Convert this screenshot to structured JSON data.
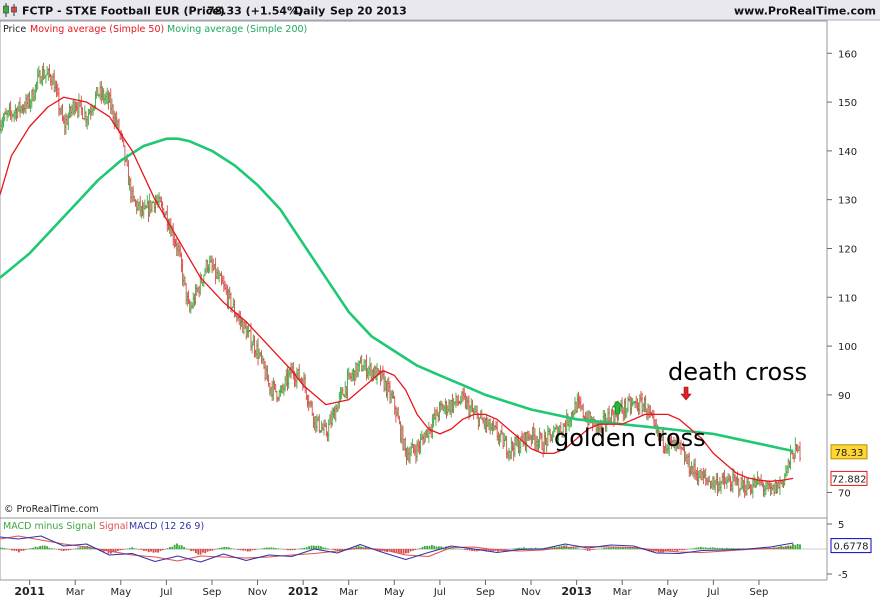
{
  "header": {
    "title": "FCTP - STXE Football EUR (Price)",
    "price": "78.33 (+1.54%)",
    "interval": "Daily",
    "date": "Sep 20 2013",
    "site": "www.ProRealTime.com"
  },
  "legend": {
    "price": "Price",
    "ma50": "Moving average (Simple 50)",
    "ma200": "Moving average (Simple 200)"
  },
  "watermark": "© ProRealTime.com",
  "annotations": {
    "golden": "golden cross",
    "death": "death cross"
  },
  "macd_legend": {
    "hist": "MACD minus Signal",
    "signal": "Signal",
    "macd": "MACD (12 26 9)"
  },
  "colors": {
    "ma50": "#e8161b",
    "ma200": "#1fc873",
    "up": "#3fa83f",
    "down": "#d84848",
    "macd": "#3333aa",
    "signal": "#e05050",
    "price_badge": "#ffd633",
    "ma50_badge": "#e8161b",
    "macd_badge": "#0000cc",
    "golden_arrow": "#22bb33",
    "death_arrow": "#dd2222"
  },
  "chart_data": [
    {
      "type": "line",
      "ylim": [
        66,
        166
      ],
      "yticks": [
        "160",
        "150",
        "140",
        "130",
        "120",
        "110",
        "100",
        "90",
        "70"
      ],
      "x_labels": [
        "2011",
        "Mar",
        "May",
        "Jul",
        "Sep",
        "Nov",
        "2012",
        "Mar",
        "May",
        "Jul",
        "Sep",
        "Nov",
        "2013",
        "Mar",
        "May",
        "Jul",
        "Sep"
      ],
      "x_label_months": [
        0,
        2,
        4,
        6,
        8,
        10,
        12,
        14,
        16,
        18,
        20,
        22,
        24,
        26,
        28,
        30,
        32
      ],
      "month_range": [
        -1.3,
        33.8
      ],
      "series": [
        {
          "name": "Price",
          "x": [
            -1.3,
            -0.7,
            0,
            0.5,
            1,
            1.5,
            2,
            2.5,
            3,
            3.5,
            4,
            4.5,
            5,
            5.5,
            6,
            6.5,
            7,
            7.5,
            7.8,
            8,
            8.5,
            9,
            9.5,
            10,
            10.5,
            11,
            11.5,
            12,
            12.5,
            13,
            13.5,
            14,
            14.5,
            15,
            15.5,
            16,
            16.5,
            17,
            17.5,
            18,
            18.5,
            19,
            19.5,
            20,
            20.5,
            21,
            21.5,
            22,
            22.5,
            23,
            23.5,
            24,
            24.5,
            25,
            25.5,
            26,
            26.5,
            27,
            27.5,
            28,
            28.5,
            29,
            29.5,
            30,
            30.5,
            31,
            31.5,
            32,
            32.5,
            33,
            33.5
          ],
          "y": [
            146,
            148,
            150,
            156,
            155,
            145,
            150,
            147,
            152,
            150,
            143,
            130,
            127,
            130,
            127,
            120,
            107,
            113,
            117,
            116,
            112,
            107,
            103,
            99,
            92,
            90,
            95,
            93,
            85,
            82,
            88,
            93,
            96,
            95,
            93,
            88,
            78,
            79,
            83,
            87,
            88,
            89,
            86,
            84,
            82,
            79,
            80,
            82,
            80,
            82,
            84,
            88,
            85,
            83,
            86,
            87,
            88,
            88,
            82,
            80,
            79,
            75,
            73,
            72,
            72,
            72,
            71,
            72,
            70,
            72,
            78.33
          ]
        },
        {
          "name": "Moving average (Simple 50)",
          "x": [
            -1.3,
            -0.8,
            0,
            0.8,
            1.5,
            2.5,
            3.5,
            4.5,
            5.5,
            6.5,
            7.5,
            8.5,
            9.5,
            10.5,
            11.5,
            12,
            13,
            14,
            15,
            15.5,
            16,
            16.5,
            17,
            17.5,
            18,
            18.5,
            19,
            19.5,
            20,
            20.5,
            21,
            21.5,
            22,
            22.5,
            23,
            23.5,
            24,
            24.5,
            25,
            25.5,
            26,
            26.5,
            27,
            27.5,
            28,
            28.5,
            29,
            29.5,
            30,
            30.5,
            31,
            31.5,
            32,
            32.5,
            33,
            33.5
          ],
          "y": [
            131,
            139,
            145,
            149,
            151,
            150,
            147,
            140,
            130,
            122,
            114,
            109,
            105,
            100,
            95,
            92,
            88,
            89,
            93,
            95,
            94,
            91,
            86,
            83,
            82,
            83,
            85,
            86,
            86,
            85,
            83,
            81,
            79,
            78,
            78,
            79,
            81,
            83,
            84,
            84,
            84,
            85,
            86,
            86,
            86,
            85,
            83,
            81,
            78,
            76,
            74,
            73,
            72.5,
            72.3,
            72.5,
            72.88
          ]
        },
        {
          "name": "Moving average (Simple 200)",
          "x": [
            -1.3,
            0,
            1,
            2,
            3,
            4,
            5,
            6,
            6.5,
            7,
            8,
            9,
            10,
            11,
            12,
            13,
            14,
            15,
            16,
            17,
            18,
            19,
            20,
            21,
            22,
            23,
            24,
            25,
            26,
            27,
            28,
            29,
            30,
            31,
            32,
            33,
            33.5
          ],
          "y": [
            114,
            119,
            124,
            129,
            134,
            138,
            141,
            142.5,
            142.5,
            142,
            140,
            137,
            133,
            128,
            121,
            114,
            107,
            102,
            99,
            96,
            94,
            92,
            90,
            88.5,
            87,
            86,
            85,
            84.5,
            84,
            83.5,
            83,
            82.5,
            82,
            81,
            80,
            79,
            78.5
          ]
        }
      ],
      "badges": [
        {
          "label": "78.33",
          "value": 78.33
        },
        {
          "label": "72.882",
          "value": 72.882
        }
      ],
      "golden_cross_month": 25.8,
      "death_cross_month": 28.8
    },
    {
      "type": "bar",
      "ylim": [
        -5,
        5
      ],
      "yticks": [
        "5",
        "-5"
      ],
      "badge": {
        "label": "0.6778",
        "value": 0.6778
      },
      "series": [
        {
          "name": "MACD minus Signal",
          "x": [
            -1.3,
            -0.5,
            0.5,
            1.5,
            2.5,
            3.5,
            4.5,
            5.5,
            6.5,
            7.5,
            8.5,
            9.5,
            10.5,
            11.5,
            12.5,
            13.5,
            14.5,
            15.5,
            16.5,
            17.5,
            18.5,
            19.5,
            20.5,
            21.5,
            22.5,
            23.5,
            24.5,
            25.5,
            26.5,
            27.5,
            28.5,
            29.5,
            30.5,
            31.5,
            32.5,
            33.5
          ],
          "y": [
            0.5,
            -0.6,
            0.8,
            -0.4,
            0.6,
            -0.8,
            0.3,
            -0.9,
            1.0,
            -1.2,
            0.6,
            -0.5,
            0.4,
            -0.3,
            0.9,
            -0.4,
            0.7,
            -0.6,
            -0.9,
            0.8,
            0.3,
            -0.4,
            -0.5,
            0.3,
            0.2,
            0.7,
            -0.3,
            0.4,
            0.3,
            -0.6,
            -0.3,
            0.4,
            0.2,
            0.1,
            0.3,
            0.9
          ]
        },
        {
          "name": "Signal",
          "x": [
            -1.3,
            -0.5,
            0.5,
            1.5,
            2.5,
            3.5,
            4.5,
            5.5,
            6.5,
            7.5,
            8.5,
            9.5,
            10.5,
            11.5,
            12.5,
            13.5,
            14.5,
            15.5,
            16.5,
            17.5,
            18.5,
            19.5,
            20.5,
            21.5,
            22.5,
            23.5,
            24.5,
            25.5,
            26.5,
            27.5,
            28.5,
            29.5,
            30.5,
            31.5,
            32.5,
            33.5
          ],
          "y": [
            2.0,
            2.6,
            1.8,
            1.0,
            0.4,
            -0.4,
            -1.2,
            -1.6,
            -2.4,
            -1.4,
            -1.6,
            -1.8,
            -1.6,
            -1.2,
            -0.9,
            -0.4,
            0.2,
            -0.1,
            -1.2,
            -1.5,
            0.3,
            0.4,
            -0.2,
            -0.4,
            -0.2,
            0.3,
            0.5,
            0.4,
            0.3,
            -0.2,
            -0.6,
            -0.7,
            -0.4,
            -0.1,
            0.1,
            0.3
          ]
        },
        {
          "name": "MACD",
          "x": [
            -1.3,
            -0.5,
            0.5,
            1.5,
            2.5,
            3.5,
            4.5,
            5.5,
            6.5,
            7.5,
            8.5,
            9.5,
            10.5,
            11.5,
            12.5,
            13.5,
            14.5,
            15.5,
            16.5,
            17.5,
            18.5,
            19.5,
            20.5,
            21.5,
            22.5,
            23.5,
            24.5,
            25.5,
            26.5,
            27.5,
            28.5,
            29.5,
            30.5,
            31.5,
            32.5,
            33.5
          ],
          "y": [
            2.4,
            2.0,
            2.6,
            0.6,
            1.0,
            -1.2,
            -0.9,
            -2.5,
            -1.4,
            -2.6,
            -1.0,
            -2.3,
            -1.2,
            -1.5,
            0.0,
            -0.8,
            0.9,
            -0.7,
            -2.1,
            -0.7,
            0.6,
            0.0,
            -0.7,
            -0.1,
            0.0,
            1.0,
            0.2,
            0.8,
            0.6,
            -0.8,
            -0.9,
            -0.3,
            -0.2,
            0.0,
            0.4,
            1.2
          ]
        }
      ]
    }
  ]
}
